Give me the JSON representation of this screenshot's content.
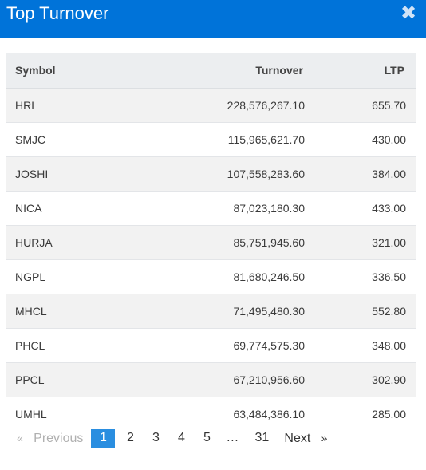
{
  "header": {
    "title": "Top Turnover",
    "close_glyph": "✖"
  },
  "table": {
    "columns": {
      "symbol": "Symbol",
      "turnover": "Turnover",
      "ltp": "LTP"
    },
    "rows": [
      {
        "symbol": "HRL",
        "turnover": "228,576,267.10",
        "ltp": "655.70"
      },
      {
        "symbol": "SMJC",
        "turnover": "115,965,621.70",
        "ltp": "430.00"
      },
      {
        "symbol": "JOSHI",
        "turnover": "107,558,283.60",
        "ltp": "384.00"
      },
      {
        "symbol": "NICA",
        "turnover": "87,023,180.30",
        "ltp": "433.00"
      },
      {
        "symbol": "HURJA",
        "turnover": "85,751,945.60",
        "ltp": "321.00"
      },
      {
        "symbol": "NGPL",
        "turnover": "81,680,246.50",
        "ltp": "336.50"
      },
      {
        "symbol": "MHCL",
        "turnover": "71,495,480.30",
        "ltp": "552.80"
      },
      {
        "symbol": "PHCL",
        "turnover": "69,774,575.30",
        "ltp": "348.00"
      },
      {
        "symbol": "PPCL",
        "turnover": "67,210,956.60",
        "ltp": "302.90"
      },
      {
        "symbol": "UMHL",
        "turnover": "63,484,386.10",
        "ltp": "285.00"
      }
    ]
  },
  "pagination": {
    "prev_arrow": "«",
    "previous": "Previous",
    "pages": [
      "1",
      "2",
      "3",
      "4",
      "5",
      "…",
      "31"
    ],
    "next": "Next",
    "next_arrow": "»"
  },
  "colors": {
    "header_bg": "#0073d9",
    "active_page": "#2a8ee0"
  }
}
